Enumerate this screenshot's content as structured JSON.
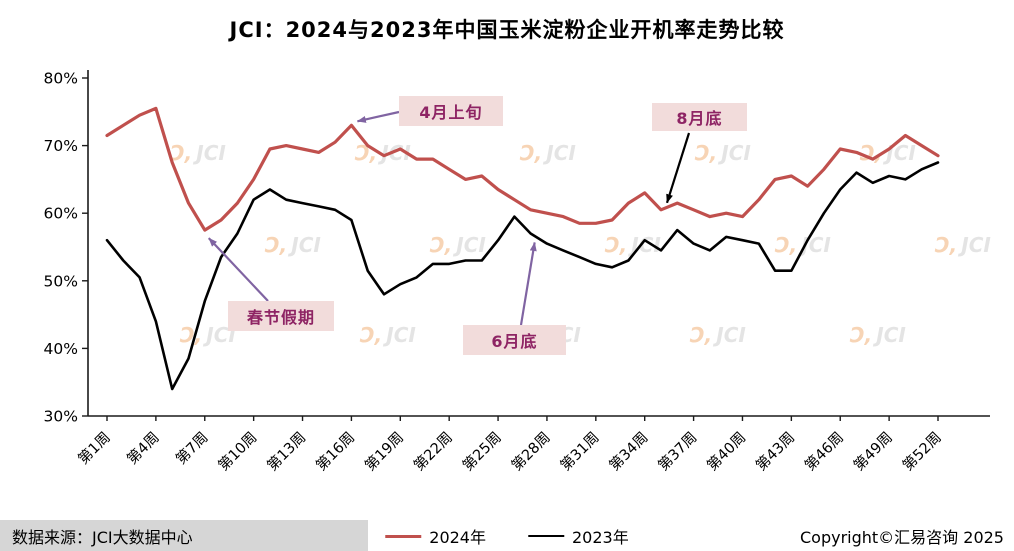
{
  "title": "JCI：2024与2023年中国玉米淀粉企业开机率走势比较",
  "chart_data": {
    "type": "line",
    "grid": false,
    "legend_position": "bottom",
    "ylim": [
      30,
      80
    ],
    "y_ticks": [
      80,
      70,
      60,
      50,
      40,
      30
    ],
    "y_tick_labels": [
      "80%",
      "70%",
      "60%",
      "50%",
      "40%",
      "30%"
    ],
    "x_label_weeks": [
      1,
      4,
      7,
      10,
      13,
      16,
      19,
      22,
      25,
      28,
      31,
      34,
      37,
      40,
      43,
      46,
      49,
      52
    ],
    "x_tick_labels": [
      "第1周",
      "第4周",
      "第7周",
      "第10周",
      "第13周",
      "第16周",
      "第19周",
      "第22周",
      "第25周",
      "第28周",
      "第31周",
      "第34周",
      "第37周",
      "第40周",
      "第43周",
      "第46周",
      "第49周",
      "第52周"
    ],
    "series": [
      {
        "name": "2024年",
        "color": "#C0504D",
        "values": [
          71.5,
          73,
          74.5,
          75.5,
          67.5,
          61.5,
          57.5,
          59,
          61.5,
          65,
          69.5,
          70,
          69.5,
          69,
          70.5,
          73,
          70,
          68.5,
          69.5,
          68,
          68,
          66.5,
          65,
          65.5,
          63.5,
          62,
          60.5,
          60,
          59.5,
          58.5,
          58.5,
          59,
          61.5,
          63,
          60.5,
          61.5,
          60.5,
          59.5,
          60,
          59.5,
          62,
          65,
          65.5,
          64,
          66.5,
          69.5,
          69,
          68,
          69.5,
          71.5,
          70,
          68.5
        ]
      },
      {
        "name": "2023年",
        "color": "#000000",
        "values": [
          56,
          53,
          50.5,
          44,
          34,
          38.5,
          47,
          53.5,
          57,
          62,
          63.5,
          62,
          61.5,
          61,
          60.5,
          59,
          51.5,
          48,
          49.5,
          50.5,
          52.5,
          52.5,
          53,
          53,
          56,
          59.5,
          57,
          55.5,
          54.5,
          53.5,
          52.5,
          52,
          53,
          56,
          54.5,
          57.5,
          55.5,
          54.5,
          56.5,
          56,
          55.5,
          51.5,
          51.5,
          56,
          60,
          63.5,
          66,
          64.5,
          65.5,
          65,
          66.5,
          67.5
        ]
      }
    ],
    "annotations": [
      {
        "label": "4月上旬",
        "target_week": 16,
        "series": "2024年",
        "arrow_color": "#8064A2"
      },
      {
        "label": "8月底",
        "target_week": 35,
        "series": "2024年",
        "arrow_color": "#000000"
      },
      {
        "label": "春节假期",
        "target_week": 7,
        "series": "2024年",
        "arrow_color": "#8064A2"
      },
      {
        "label": "6月底",
        "target_week": 27,
        "series": "2023年",
        "arrow_color": "#8064A2"
      }
    ]
  },
  "watermark": {
    "swoosh": "Ͻ,",
    "text": "JCI"
  },
  "footer": {
    "source": "数据来源：JCI大数据中心",
    "copyright": "Copyright©汇易咨询 2025"
  },
  "colors": {
    "annotation_bg": "#F2DCDB",
    "annotation_text": "#8E2464",
    "arrow_purple": "#8064A2",
    "series_2024": "#C0504D",
    "series_2023": "#000000",
    "source_strip_bg": "#D6D6D6"
  }
}
